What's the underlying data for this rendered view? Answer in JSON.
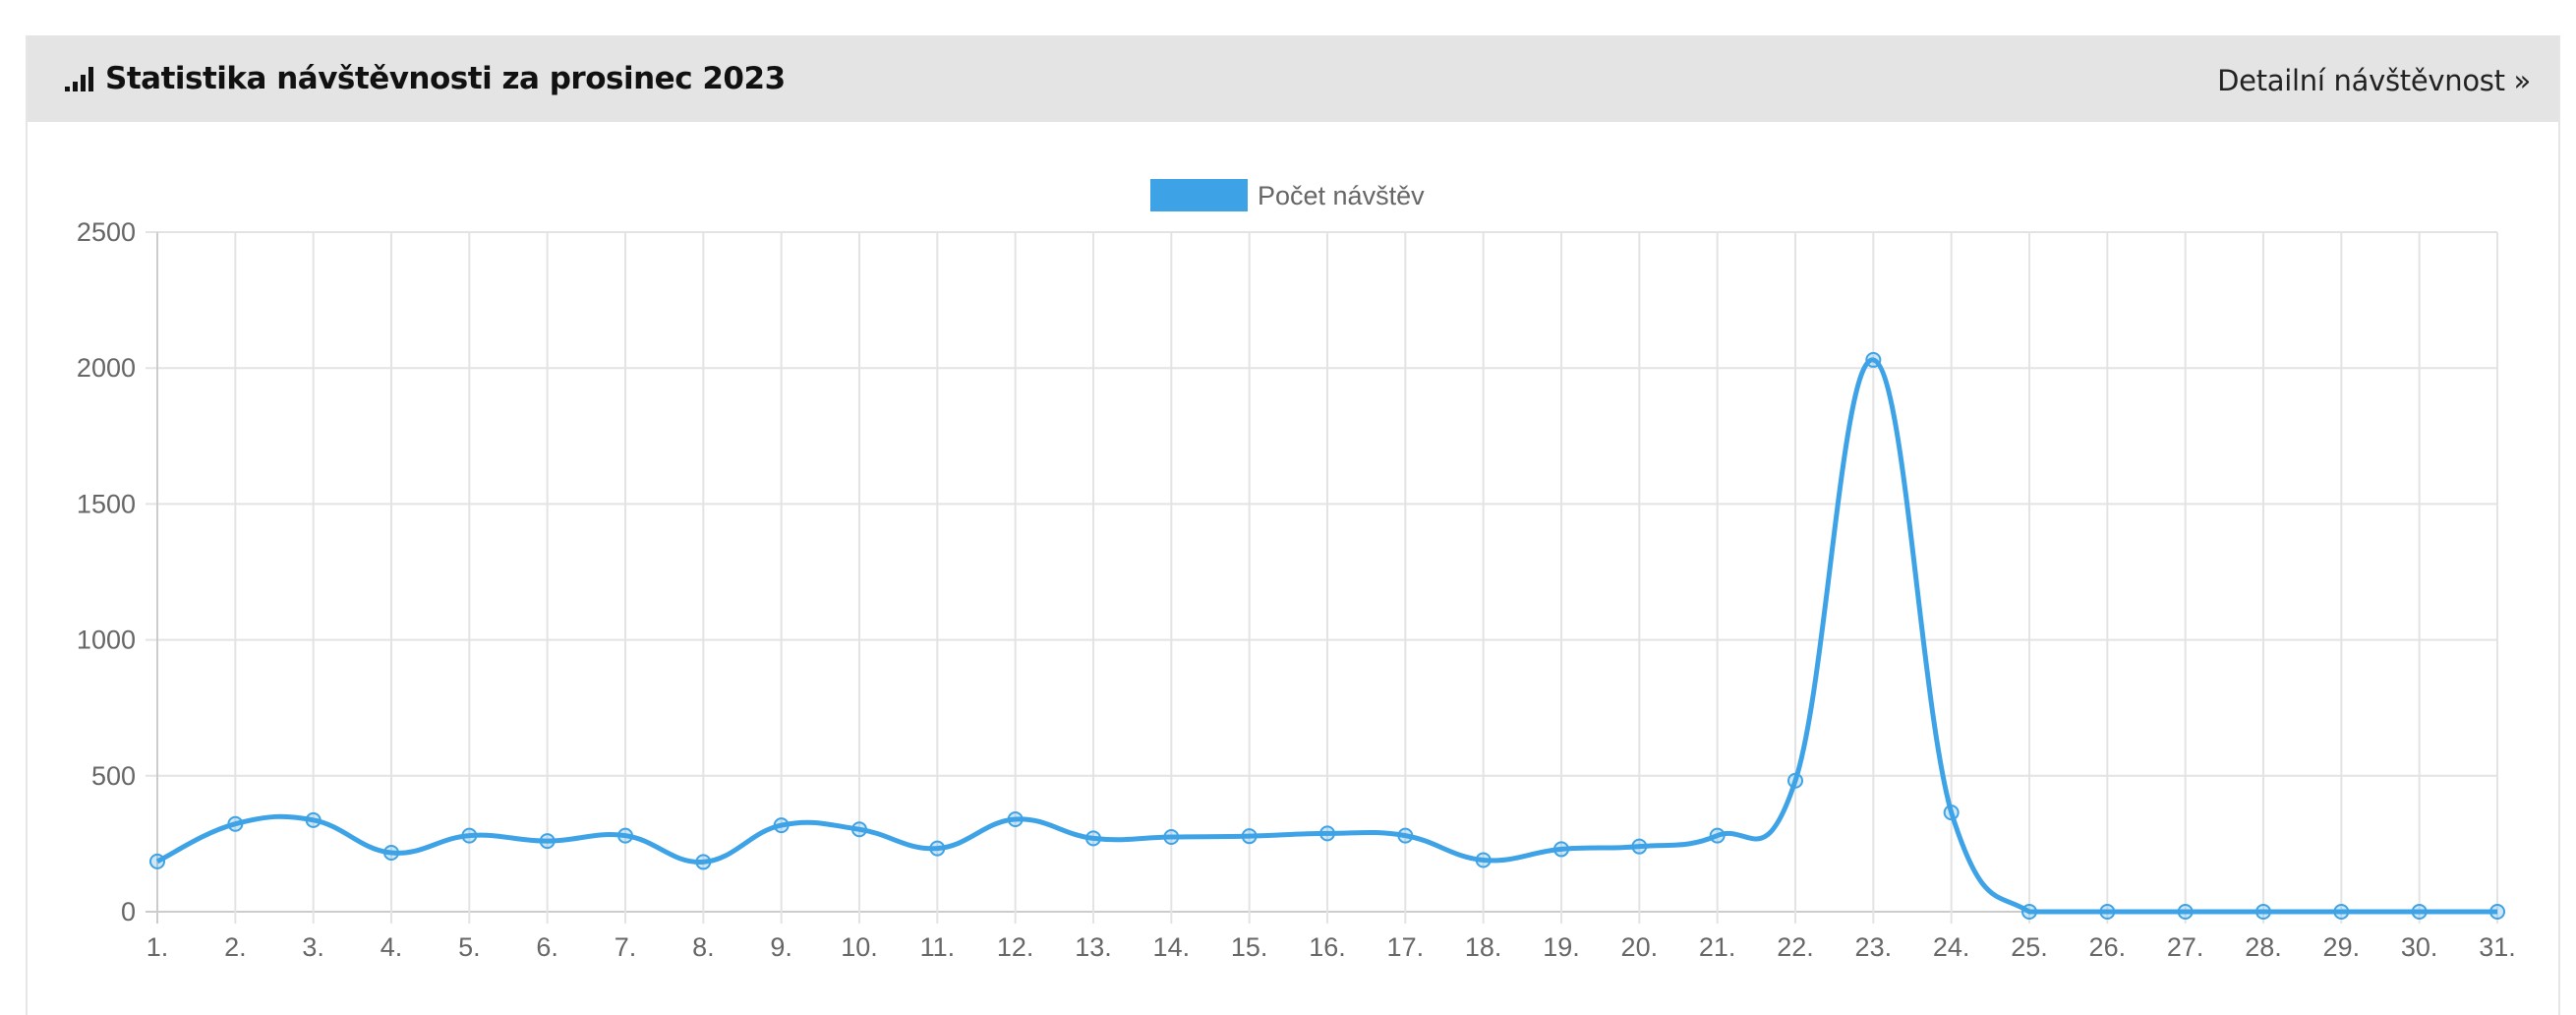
{
  "panel": {
    "icon": "signal-bars-icon",
    "title": "Statistika návštěvnosti za prosinec 2023",
    "detail_link": "Detailní návštěvnost »"
  },
  "colors": {
    "line": "#3ea3e6",
    "grid": "#e3e3e3",
    "axis": "#cccccc",
    "header_bg": "#e4e4e4"
  },
  "chart_data": {
    "type": "line",
    "title": "",
    "xlabel": "",
    "ylabel": "",
    "categories": [
      "1.",
      "2.",
      "3.",
      "4.",
      "5.",
      "6.",
      "7.",
      "8.",
      "9.",
      "10.",
      "11.",
      "12.",
      "13.",
      "14.",
      "15.",
      "16.",
      "17.",
      "18.",
      "19.",
      "20.",
      "21.",
      "22.",
      "23.",
      "24.",
      "25.",
      "26.",
      "27.",
      "28.",
      "29.",
      "30.",
      "31."
    ],
    "series": [
      {
        "name": "Počet návštěv",
        "values": [
          185,
          323,
          337,
          217,
          280,
          260,
          280,
          183,
          318,
          303,
          233,
          340,
          270,
          275,
          278,
          288,
          280,
          190,
          230,
          240,
          280,
          482,
          2030,
          365,
          0,
          0,
          0,
          0,
          0,
          0,
          0
        ]
      }
    ],
    "ylim": [
      0,
      2500
    ],
    "yticks": [
      0,
      500,
      1000,
      1500,
      2000,
      2500
    ],
    "grid": true,
    "legend": "top-center"
  }
}
